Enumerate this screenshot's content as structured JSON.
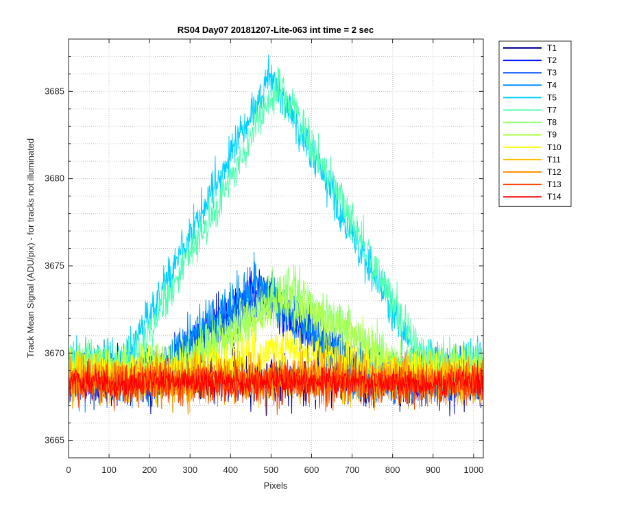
{
  "chart_data": {
    "type": "line",
    "title": "RS04 Day07 20181207-Lite-063 int time = 2 sec",
    "xlabel": "Pixels",
    "ylabel": "Track Mean Signal (ADU/pix) - for tracks not illuminated",
    "xlim": [
      0,
      1024
    ],
    "ylim": [
      3664,
      3688
    ],
    "xticks": [
      0,
      100,
      200,
      300,
      400,
      500,
      600,
      700,
      800,
      900,
      1000
    ],
    "yticks": [
      3665,
      3670,
      3675,
      3680,
      3685
    ],
    "grid": "dotted",
    "legend_position": "outside-top-right",
    "series": [
      {
        "name": "T1",
        "color": "#00008f",
        "baseline": 3668.5,
        "peak_amplitude": 0,
        "peak_center": 510,
        "peak_width": 600,
        "noise": 1.3
      },
      {
        "name": "T2",
        "color": "#0010ff",
        "baseline": 3668.6,
        "peak_amplitude": 5.0,
        "peak_center": 470,
        "peak_width": 520,
        "noise": 1.3
      },
      {
        "name": "T3",
        "color": "#0050ff",
        "baseline": 3668.6,
        "peak_amplitude": 5.0,
        "peak_center": 480,
        "peak_width": 520,
        "noise": 1.3
      },
      {
        "name": "T4",
        "color": "#0090ff",
        "baseline": 3668.6,
        "peak_amplitude": 5.5,
        "peak_center": 460,
        "peak_width": 520,
        "noise": 1.3
      },
      {
        "name": "T5",
        "color": "#00d0ff",
        "baseline": 3669.5,
        "peak_amplitude": 16.5,
        "peak_center": 500,
        "peak_width": 720,
        "noise": 1.1
      },
      {
        "name": "T7",
        "color": "#50ffaf",
        "baseline": 3669.5,
        "peak_amplitude": 16.0,
        "peak_center": 520,
        "peak_width": 720,
        "noise": 1.1
      },
      {
        "name": "T8",
        "color": "#90ff6f",
        "baseline": 3669.2,
        "peak_amplitude": 4.5,
        "peak_center": 540,
        "peak_width": 560,
        "noise": 1.2
      },
      {
        "name": "T9",
        "color": "#afff4f",
        "baseline": 3669.0,
        "peak_amplitude": 4.0,
        "peak_center": 540,
        "peak_width": 560,
        "noise": 1.2
      },
      {
        "name": "T10",
        "color": "#ffff00",
        "baseline": 3668.8,
        "peak_amplitude": 1.5,
        "peak_center": 520,
        "peak_width": 560,
        "noise": 1.2
      },
      {
        "name": "T11",
        "color": "#ffbf00",
        "baseline": 3668.5,
        "peak_amplitude": 0,
        "peak_center": 510,
        "peak_width": 600,
        "noise": 1.2
      },
      {
        "name": "T12",
        "color": "#ff8f00",
        "baseline": 3668.4,
        "peak_amplitude": 0,
        "peak_center": 510,
        "peak_width": 600,
        "noise": 1.2
      },
      {
        "name": "T13",
        "color": "#ff4000",
        "baseline": 3668.3,
        "peak_amplitude": 0,
        "peak_center": 510,
        "peak_width": 600,
        "noise": 1.1
      },
      {
        "name": "T14",
        "color": "#ff0000",
        "baseline": 3668.3,
        "peak_amplitude": 0,
        "peak_center": 510,
        "peak_width": 600,
        "noise": 0.8
      }
    ]
  }
}
